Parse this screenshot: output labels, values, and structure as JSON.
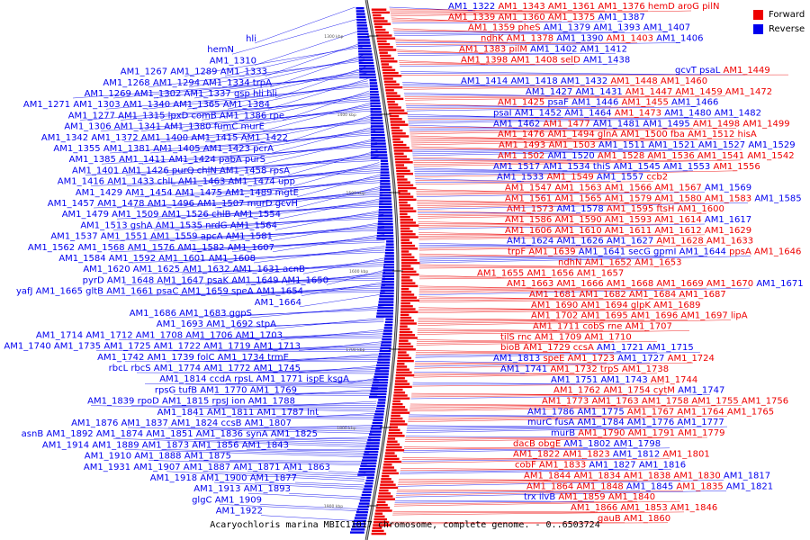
{
  "title": "Acaryochloris marina MBIC11017 chromosome, complete genome. - 0..6503724",
  "legend": [
    {
      "label": "Forward",
      "color": "#ee0000"
    },
    {
      "label": "Reverse",
      "color": "#0000ee"
    }
  ],
  "ticks": [
    "1300 kbp",
    "1400 kbp",
    "1500 kbp",
    "1600 kbp",
    "1700 kbp",
    "1800 kbp",
    "1900 kbp"
  ],
  "reverse_label_rows": [
    [
      "hli"
    ],
    [
      "hemN"
    ],
    [
      "AM1_1310"
    ],
    [
      "AM1_1267",
      "AM1_1289",
      "AM1_1333"
    ],
    [
      "AM1_1268",
      "AM1_1294",
      "AM1_1334",
      "trpA"
    ],
    [
      "AM1_1269",
      "AM1_1302",
      "AM1_1337",
      "gsp",
      "hli",
      "hli"
    ],
    [
      "AM1_1271",
      "AM1_1303",
      "AM1_1340",
      "AM1_1365",
      "AM1_1384"
    ],
    [
      "AM1_1277",
      "AM1_1315",
      "lpxD",
      "comB",
      "AM1_1386",
      "rpe"
    ],
    [
      "AM1_1306",
      "AM1_1341",
      "AM1_1380",
      "fumC",
      "murE"
    ],
    [
      "AM1_1342",
      "AM1_1372",
      "AM1_1400",
      "AM1_1415",
      "AM1_1422"
    ],
    [
      "AM1_1355",
      "AM1_1381",
      "AM1_1405",
      "AM1_1423",
      "pcrA"
    ],
    [
      "AM1_1385",
      "AM1_1411",
      "AM1_1424",
      "pabA",
      "purS"
    ],
    [
      "AM1_1401",
      "AM1_1426",
      "purQ",
      "chlN",
      "AM1_1458",
      "rpsA"
    ],
    [
      "AM1_1416",
      "AM1_1433",
      "chlL",
      "AM1_1463",
      "AM1_1474",
      "upp"
    ],
    [
      "AM1_1429",
      "AM1_1454",
      "AM1_1475",
      "AM1_1489",
      "mgtE"
    ],
    [
      "AM1_1457",
      "AM1_1478",
      "AM1_1496",
      "AM1_1507",
      "murD",
      "gcvH"
    ],
    [
      "AM1_1479",
      "AM1_1509",
      "AM1_1526",
      "chlB",
      "AM1_1554"
    ],
    [
      "AM1_1513",
      "gshA",
      "AM1_1535",
      "nrdG",
      "AM1_1564"
    ],
    [
      "AM1_1537",
      "AM1_1551",
      "AM1_1559",
      "apcA",
      "AM1_1581"
    ],
    [
      "AM1_1562",
      "AM1_1568",
      "AM1_1576",
      "AM1_1582",
      "AM1_1607"
    ],
    [
      "AM1_1584",
      "AM1_1592",
      "AM1_1601",
      "AM1_1608"
    ],
    [
      "AM1_1620",
      "AM1_1625",
      "AM1_1632",
      "AM1_1631",
      "acnB"
    ],
    [
      "pyrD",
      "AM1_1648",
      "AM1_1647",
      "psaK",
      "AM1_1649",
      "AM1_1650"
    ],
    [
      "yafJ",
      "AM1_1665",
      "gltB",
      "AM1_1661",
      "psaC",
      "AM1_1659",
      "speA",
      "AM1_1654"
    ],
    [
      "AM1_1664"
    ],
    [
      "AM1_1686",
      "AM1_1683",
      "ggpS"
    ],
    [
      "AM1_1693",
      "AM1_1692",
      "stpA"
    ],
    [
      "AM1_1714",
      "AM1_1712",
      "AM1_1708",
      "AM1_1706",
      "AM1_1703"
    ],
    [
      "AM1_1740",
      "AM1_1735",
      "AM1_1725",
      "AM1_1722",
      "AM1_1719",
      "AM1_1713"
    ],
    [
      "AM1_1742",
      "AM1_1739",
      "folC",
      "AM1_1734",
      "trmE"
    ],
    [
      "rbcL",
      "rbcS",
      "AM1_1774",
      "AM1_1772",
      "AM1_1745"
    ],
    [
      "AM1_1814",
      "ccdA",
      "rpsL",
      "AM1_1771",
      "ispE",
      "ksgA"
    ],
    [
      "rpsG",
      "tufB",
      "AM1_1770",
      "AM1_1769"
    ],
    [
      "AM1_1839",
      "rpoD",
      "AM1_1815",
      "rpsJ",
      "ion",
      "AM1_1788"
    ],
    [
      "AM1_1841",
      "AM1_1811",
      "AM1_1787",
      "lnt"
    ],
    [
      "AM1_1876",
      "AM1_1837",
      "AM1_1824",
      "ccsB",
      "AM1_1807"
    ],
    [
      "asnB",
      "AM1_1892",
      "AM1_1874",
      "AM1_1851",
      "AM1_1836",
      "synA",
      "AM1_1825"
    ],
    [
      "AM1_1914",
      "AM1_1889",
      "AM1_1873",
      "AM1_1856",
      "AM1_1843"
    ],
    [
      "AM1_1910",
      "AM1_1888",
      "AM1_1875"
    ],
    [
      "AM1_1931",
      "AM1_1907",
      "AM1_1887",
      "AM1_1871",
      "AM1_1863"
    ],
    [
      "AM1_1918",
      "AM1_1900",
      "AM1_1877"
    ],
    [
      "AM1_1913",
      "AM1_1893"
    ],
    [
      "glgC",
      "AM1_1909"
    ],
    [
      "AM1_1922"
    ]
  ],
  "right_label_rows": [
    [
      {
        "t": "AM1_1322",
        "s": "r"
      },
      {
        "t": "AM1_1343",
        "s": "f"
      },
      {
        "t": "AM1_1361",
        "s": "f"
      },
      {
        "t": "AM1_1376",
        "s": "f"
      },
      {
        "t": "hemD",
        "s": "f"
      },
      {
        "t": "aroG",
        "s": "f"
      },
      {
        "t": "pilN",
        "s": "f"
      }
    ],
    [
      {
        "t": "AM1_1339",
        "s": "f"
      },
      {
        "t": "AM1_1360",
        "s": "f"
      },
      {
        "t": "AM1_1375",
        "s": "f"
      },
      {
        "t": "AM1_1387",
        "s": "r"
      }
    ],
    [
      {
        "t": "AM1_1359",
        "s": "f"
      },
      {
        "t": "pheS",
        "s": "f"
      },
      {
        "t": "AM1_1379",
        "s": "r"
      },
      {
        "t": "AM1_1393",
        "s": "r"
      },
      {
        "t": "AM1_1407",
        "s": "r"
      }
    ],
    [
      {
        "t": "ndhK",
        "s": "f"
      },
      {
        "t": "AM1_1378",
        "s": "f"
      },
      {
        "t": "AM1_1390",
        "s": "r"
      },
      {
        "t": "AM1_1403",
        "s": "f"
      },
      {
        "t": "AM1_1406",
        "s": "r"
      }
    ],
    [
      {
        "t": "AM1_1383",
        "s": "f"
      },
      {
        "t": "pilM",
        "s": "f"
      },
      {
        "t": "AM1_1402",
        "s": "r"
      },
      {
        "t": "AM1_1412",
        "s": "r"
      }
    ],
    [
      {
        "t": "AM1_1398",
        "s": "f"
      },
      {
        "t": "AM1_1408",
        "s": "f"
      },
      {
        "t": "selD",
        "s": "f"
      },
      {
        "t": "AM1_1438",
        "s": "r"
      }
    ],
    [
      {
        "t": "gcvT",
        "s": "r"
      },
      {
        "t": "psaL",
        "s": "r"
      },
      {
        "t": "AM1_1449",
        "s": "f"
      }
    ],
    [
      {
        "t": "AM1_1414",
        "s": "r"
      },
      {
        "t": "AM1_1418",
        "s": "r"
      },
      {
        "t": "AM1_1432",
        "s": "r"
      },
      {
        "t": "AM1_1448",
        "s": "f"
      },
      {
        "t": "AM1_1460",
        "s": "f"
      }
    ],
    [
      {
        "t": "AM1_1427",
        "s": "r"
      },
      {
        "t": "AM1_1431",
        "s": "r"
      },
      {
        "t": "AM1_1447",
        "s": "f"
      },
      {
        "t": "AM1_1459",
        "s": "f"
      },
      {
        "t": "AM1_1472",
        "s": "f"
      }
    ],
    [
      {
        "t": "AM1_1425",
        "s": "f"
      },
      {
        "t": "psaF",
        "s": "r"
      },
      {
        "t": "AM1_1446",
        "s": "r"
      },
      {
        "t": "AM1_1455",
        "s": "f"
      },
      {
        "t": "AM1_1466",
        "s": "r"
      }
    ],
    [
      {
        "t": "psaI",
        "s": "r"
      },
      {
        "t": "AM1_1452",
        "s": "r"
      },
      {
        "t": "AM1_1464",
        "s": "r"
      },
      {
        "t": "AM1_1473",
        "s": "f"
      },
      {
        "t": "AM1_1480",
        "s": "r"
      },
      {
        "t": "AM1_1482",
        "s": "r"
      }
    ],
    [
      {
        "t": "AM1_1462",
        "s": "r"
      },
      {
        "t": "AM1_1477",
        "s": "f"
      },
      {
        "t": "AM1_1481",
        "s": "r"
      },
      {
        "t": "AM1_1495",
        "s": "r"
      },
      {
        "t": "AM1_1498",
        "s": "f"
      },
      {
        "t": "AM1_1499",
        "s": "f"
      }
    ],
    [
      {
        "t": "AM1_1476",
        "s": "f"
      },
      {
        "t": "AM1_1494",
        "s": "f"
      },
      {
        "t": "glnA",
        "s": "f"
      },
      {
        "t": "AM1_1500",
        "s": "f"
      },
      {
        "t": "fba",
        "s": "f"
      },
      {
        "t": "AM1_1512",
        "s": "f"
      },
      {
        "t": "hisA",
        "s": "f"
      }
    ],
    [
      {
        "t": "AM1_1493",
        "s": "f"
      },
      {
        "t": "AM1_1503",
        "s": "f"
      },
      {
        "t": "AM1_1511",
        "s": "r"
      },
      {
        "t": "AM1_1521",
        "s": "r"
      },
      {
        "t": "AM1_1527",
        "s": "r"
      },
      {
        "t": "AM1_1529",
        "s": "r"
      }
    ],
    [
      {
        "t": "AM1_1502",
        "s": "f"
      },
      {
        "t": "AM1_1520",
        "s": "r"
      },
      {
        "t": "AM1_1528",
        "s": "f"
      },
      {
        "t": "AM1_1536",
        "s": "f"
      },
      {
        "t": "AM1_1541",
        "s": "f"
      },
      {
        "t": "AM1_1542",
        "s": "f"
      }
    ],
    [
      {
        "t": "AM1_1517",
        "s": "r"
      },
      {
        "t": "AM1_1534",
        "s": "r"
      },
      {
        "t": "thiS",
        "s": "r"
      },
      {
        "t": "AM1_1545",
        "s": "r"
      },
      {
        "t": "AM1_1553",
        "s": "r"
      },
      {
        "t": "AM1_1556",
        "s": "f"
      }
    ],
    [
      {
        "t": "AM1_1533",
        "s": "r"
      },
      {
        "t": "AM1_1549",
        "s": "f"
      },
      {
        "t": "AM1_1557",
        "s": "r"
      },
      {
        "t": "ccb2",
        "s": "f"
      }
    ],
    [
      {
        "t": "AM1_1547",
        "s": "f"
      },
      {
        "t": "AM1_1563",
        "s": "f"
      },
      {
        "t": "AM1_1566",
        "s": "f"
      },
      {
        "t": "AM1_1567",
        "s": "f"
      },
      {
        "t": "AM1_1569",
        "s": "r"
      }
    ],
    [
      {
        "t": "AM1_1561",
        "s": "f"
      },
      {
        "t": "AM1_1565",
        "s": "f"
      },
      {
        "t": "AM1_1579",
        "s": "f"
      },
      {
        "t": "AM1_1580",
        "s": "f"
      },
      {
        "t": "AM1_1583",
        "s": "f"
      },
      {
        "t": "AM1_1585",
        "s": "r"
      }
    ],
    [
      {
        "t": "AM1_1573",
        "s": "f"
      },
      {
        "t": "AM1_1578",
        "s": "r"
      },
      {
        "t": "AM1_1595",
        "s": "f"
      },
      {
        "t": "ftsH",
        "s": "f"
      },
      {
        "t": "AM1_1600",
        "s": "f"
      }
    ],
    [
      {
        "t": "AM1_1586",
        "s": "f"
      },
      {
        "t": "AM1_1590",
        "s": "f"
      },
      {
        "t": "AM1_1593",
        "s": "f"
      },
      {
        "t": "AM1_1614",
        "s": "f"
      },
      {
        "t": "AM1_1617",
        "s": "r"
      }
    ],
    [
      {
        "t": "AM1_1606",
        "s": "f"
      },
      {
        "t": "AM1_1610",
        "s": "f"
      },
      {
        "t": "AM1_1611",
        "s": "f"
      },
      {
        "t": "AM1_1612",
        "s": "f"
      },
      {
        "t": "AM1_1629",
        "s": "f"
      }
    ],
    [
      {
        "t": "AM1_1624",
        "s": "r"
      },
      {
        "t": "AM1_1626",
        "s": "r"
      },
      {
        "t": "AM1_1627",
        "s": "r"
      },
      {
        "t": "AM1_1628",
        "s": "f"
      },
      {
        "t": "AM1_1633",
        "s": "f"
      }
    ],
    [
      {
        "t": "trpF",
        "s": "f"
      },
      {
        "t": "AM1_1639",
        "s": "f"
      },
      {
        "t": "AM1_1641",
        "s": "r"
      },
      {
        "t": "secG",
        "s": "r"
      },
      {
        "t": "gpmI",
        "s": "r"
      },
      {
        "t": "AM1_1644",
        "s": "r"
      },
      {
        "t": "ppsA",
        "s": "f"
      },
      {
        "t": "AM1_1646",
        "s": "f"
      }
    ],
    [
      {
        "t": "ndhN",
        "s": "f"
      },
      {
        "t": "AM1_1652",
        "s": "f"
      },
      {
        "t": "AM1_1653",
        "s": "f"
      }
    ],
    [
      {
        "t": "AM1_1655",
        "s": "f"
      },
      {
        "t": "AM1_1656",
        "s": "f"
      },
      {
        "t": "AM1_1657",
        "s": "f"
      }
    ],
    [
      {
        "t": "AM1_1663",
        "s": "f"
      },
      {
        "t": "AM1_1666",
        "s": "f"
      },
      {
        "t": "AM1_1668",
        "s": "f"
      },
      {
        "t": "AM1_1669",
        "s": "f"
      },
      {
        "t": "AM1_1670",
        "s": "f"
      },
      {
        "t": "AM1_1671",
        "s": "r"
      }
    ],
    [
      {
        "t": "AM1_1681",
        "s": "f"
      },
      {
        "t": "AM1_1682",
        "s": "f"
      },
      {
        "t": "AM1_1684",
        "s": "f"
      },
      {
        "t": "AM1_1687",
        "s": "f"
      }
    ],
    [
      {
        "t": "AM1_1690",
        "s": "f"
      },
      {
        "t": "AM1_1694",
        "s": "f"
      },
      {
        "t": "glpK",
        "s": "f"
      },
      {
        "t": "AM1_1689",
        "s": "f"
      }
    ],
    [
      {
        "t": "AM1_1702",
        "s": "f"
      },
      {
        "t": "AM1_1695",
        "s": "f"
      },
      {
        "t": "AM1_1696",
        "s": "f"
      },
      {
        "t": "AM1_1697",
        "s": "f"
      },
      {
        "t": "lipA",
        "s": "f"
      }
    ],
    [
      {
        "t": "AM1_1711",
        "s": "f"
      },
      {
        "t": "cobS",
        "s": "f"
      },
      {
        "t": "rne",
        "s": "f"
      },
      {
        "t": "AM1_1707",
        "s": "f"
      }
    ],
    [
      {
        "t": "tilS",
        "s": "f"
      },
      {
        "t": "rnc",
        "s": "f"
      },
      {
        "t": "AM1_1709",
        "s": "f"
      },
      {
        "t": "AM1_1710",
        "s": "f"
      }
    ],
    [
      {
        "t": "bioB",
        "s": "f"
      },
      {
        "t": "AM1_1729",
        "s": "f"
      },
      {
        "t": "ccsA",
        "s": "f"
      },
      {
        "t": "AM1_1721",
        "s": "r"
      },
      {
        "t": "AM1_1715",
        "s": "r"
      }
    ],
    [
      {
        "t": "AM1_1813",
        "s": "r"
      },
      {
        "t": "speE",
        "s": "f"
      },
      {
        "t": "AM1_1723",
        "s": "f"
      },
      {
        "t": "AM1_1727",
        "s": "r"
      },
      {
        "t": "AM1_1724",
        "s": "f"
      }
    ],
    [
      {
        "t": "AM1_1741",
        "s": "r"
      },
      {
        "t": "AM1_1732",
        "s": "f"
      },
      {
        "t": "trpS",
        "s": "f"
      },
      {
        "t": "AM1_1738",
        "s": "f"
      }
    ],
    [
      {
        "t": "AM1_1751",
        "s": "r"
      },
      {
        "t": "AM1_1743",
        "s": "r"
      },
      {
        "t": "AM1_1744",
        "s": "f"
      }
    ],
    [
      {
        "t": "AM1_1762",
        "s": "f"
      },
      {
        "t": "AM1_1754",
        "s": "f"
      },
      {
        "t": "cytM",
        "s": "f"
      },
      {
        "t": "AM1_1747",
        "s": "r"
      }
    ],
    [
      {
        "t": "AM1_1773",
        "s": "f"
      },
      {
        "t": "AM1_1763",
        "s": "f"
      },
      {
        "t": "AM1_1758",
        "s": "f"
      },
      {
        "t": "AM1_1755",
        "s": "f"
      },
      {
        "t": "AM1_1756",
        "s": "f"
      }
    ],
    [
      {
        "t": "AM1_1786",
        "s": "r"
      },
      {
        "t": "AM1_1775",
        "s": "r"
      },
      {
        "t": "AM1_1767",
        "s": "f"
      },
      {
        "t": "AM1_1764",
        "s": "f"
      },
      {
        "t": "AM1_1765",
        "s": "f"
      }
    ],
    [
      {
        "t": "murC",
        "s": "r"
      },
      {
        "t": "fusA",
        "s": "r"
      },
      {
        "t": "AM1_1784",
        "s": "r"
      },
      {
        "t": "AM1_1776",
        "s": "r"
      },
      {
        "t": "AM1_1777",
        "s": "r"
      }
    ],
    [
      {
        "t": "murB",
        "s": "r"
      },
      {
        "t": "AM1_1790",
        "s": "f"
      },
      {
        "t": "AM1_1791",
        "s": "f"
      },
      {
        "t": "AM1_1779",
        "s": "f"
      }
    ],
    [
      {
        "t": "dacB",
        "s": "f"
      },
      {
        "t": "obgE",
        "s": "f"
      },
      {
        "t": "AM1_1802",
        "s": "r"
      },
      {
        "t": "AM1_1798",
        "s": "r"
      }
    ],
    [
      {
        "t": "AM1_1822",
        "s": "f"
      },
      {
        "t": "AM1_1823",
        "s": "f"
      },
      {
        "t": "AM1_1812",
        "s": "r"
      },
      {
        "t": "AM1_1801",
        "s": "f"
      }
    ],
    [
      {
        "t": "cobF",
        "s": "f"
      },
      {
        "t": "AM1_1833",
        "s": "f"
      },
      {
        "t": "AM1_1827",
        "s": "r"
      },
      {
        "t": "AM1_1816",
        "s": "r"
      }
    ],
    [
      {
        "t": "AM1_1844",
        "s": "f"
      },
      {
        "t": "AM1_1834",
        "s": "f"
      },
      {
        "t": "AM1_1838",
        "s": "f"
      },
      {
        "t": "AM1_1830",
        "s": "f"
      },
      {
        "t": "AM1_1817",
        "s": "r"
      }
    ],
    [
      {
        "t": "AM1_1864",
        "s": "f"
      },
      {
        "t": "AM1_1848",
        "s": "f"
      },
      {
        "t": "AM1_1845",
        "s": "r"
      },
      {
        "t": "AM1_1835",
        "s": "f"
      },
      {
        "t": "AM1_1821",
        "s": "r"
      }
    ],
    [
      {
        "t": "trx",
        "s": "r"
      },
      {
        "t": "ilvB",
        "s": "r"
      },
      {
        "t": "AM1_1859",
        "s": "f"
      },
      {
        "t": "AM1_1840",
        "s": "f"
      }
    ],
    [
      {
        "t": "AM1_1866",
        "s": "f"
      },
      {
        "t": "AM1_1853",
        "s": "f"
      },
      {
        "t": "AM1_1846",
        "s": "f"
      }
    ],
    [
      {
        "t": "gauB",
        "s": "f"
      },
      {
        "t": "AM1_1860",
        "s": "f"
      }
    ]
  ]
}
